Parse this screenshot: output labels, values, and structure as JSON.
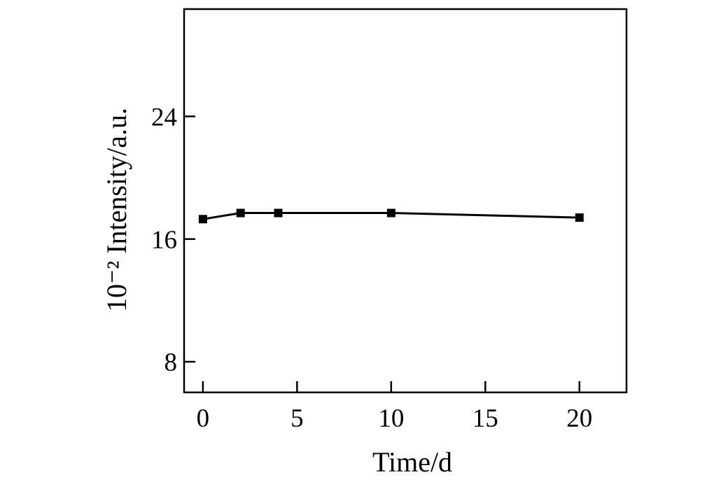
{
  "chart_data": {
    "type": "line",
    "title": "",
    "xlabel": "Time/d",
    "ylabel": "10⁻² Intensity/a.u.",
    "xlim": [
      -1,
      22.5
    ],
    "ylim": [
      6,
      31
    ],
    "xticks": [
      0,
      5,
      10,
      15,
      20
    ],
    "yticks": [
      8,
      16,
      24
    ],
    "grid": false,
    "legend": "none",
    "marker": "square",
    "color": "#000000",
    "series": [
      {
        "x": [
          0,
          2,
          4,
          10,
          20
        ],
        "y": [
          17.3,
          17.7,
          17.7,
          17.7,
          17.4
        ]
      }
    ]
  }
}
